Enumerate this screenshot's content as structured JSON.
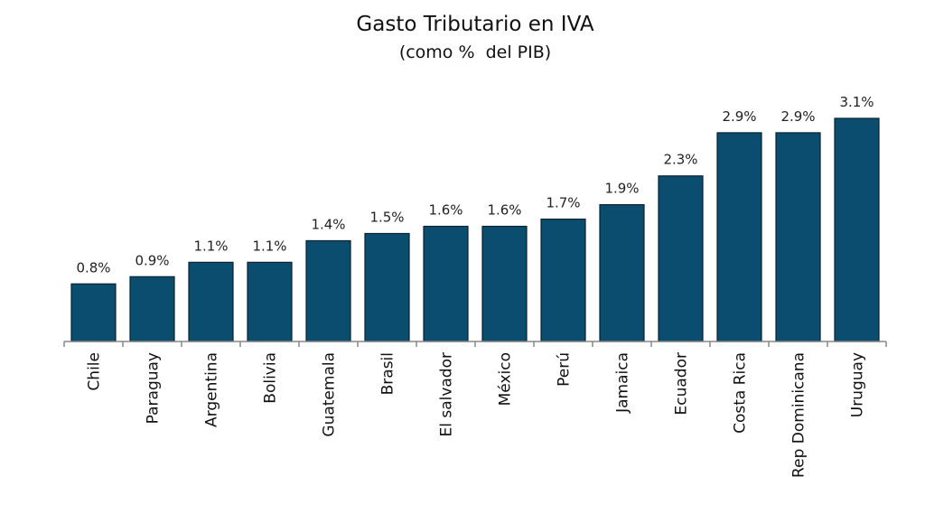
{
  "chart_data": {
    "type": "bar",
    "title": "Gasto Tributario en IVA",
    "subtitle": "(como %  del PIB)",
    "xlabel": "",
    "ylabel": "",
    "categories": [
      "Chile",
      "Paraguay",
      "Argentina",
      "Bolivia",
      "Guatemala",
      "Brasil",
      "El salvador",
      "México",
      "Perú",
      "Jamaica",
      "Ecuador",
      "Costa Rica",
      "Rep Dominicana",
      "Uruguay"
    ],
    "values": [
      0.8,
      0.9,
      1.1,
      1.1,
      1.4,
      1.5,
      1.6,
      1.6,
      1.7,
      1.9,
      2.3,
      2.9,
      2.9,
      3.1
    ],
    "data_labels": [
      "0.8%",
      "0.9%",
      "1.1%",
      "1.1%",
      "1.4%",
      "1.5%",
      "1.6%",
      "1.6%",
      "1.7%",
      "1.9%",
      "2.3%",
      "2.9%",
      "2.9%",
      "3.1%"
    ],
    "ylim": [
      0,
      3.1
    ],
    "grid": false,
    "legend": "none",
    "bar_color": "#0b4d6e",
    "bar_border_color": "#0a2230",
    "axis_color": "#888888"
  }
}
